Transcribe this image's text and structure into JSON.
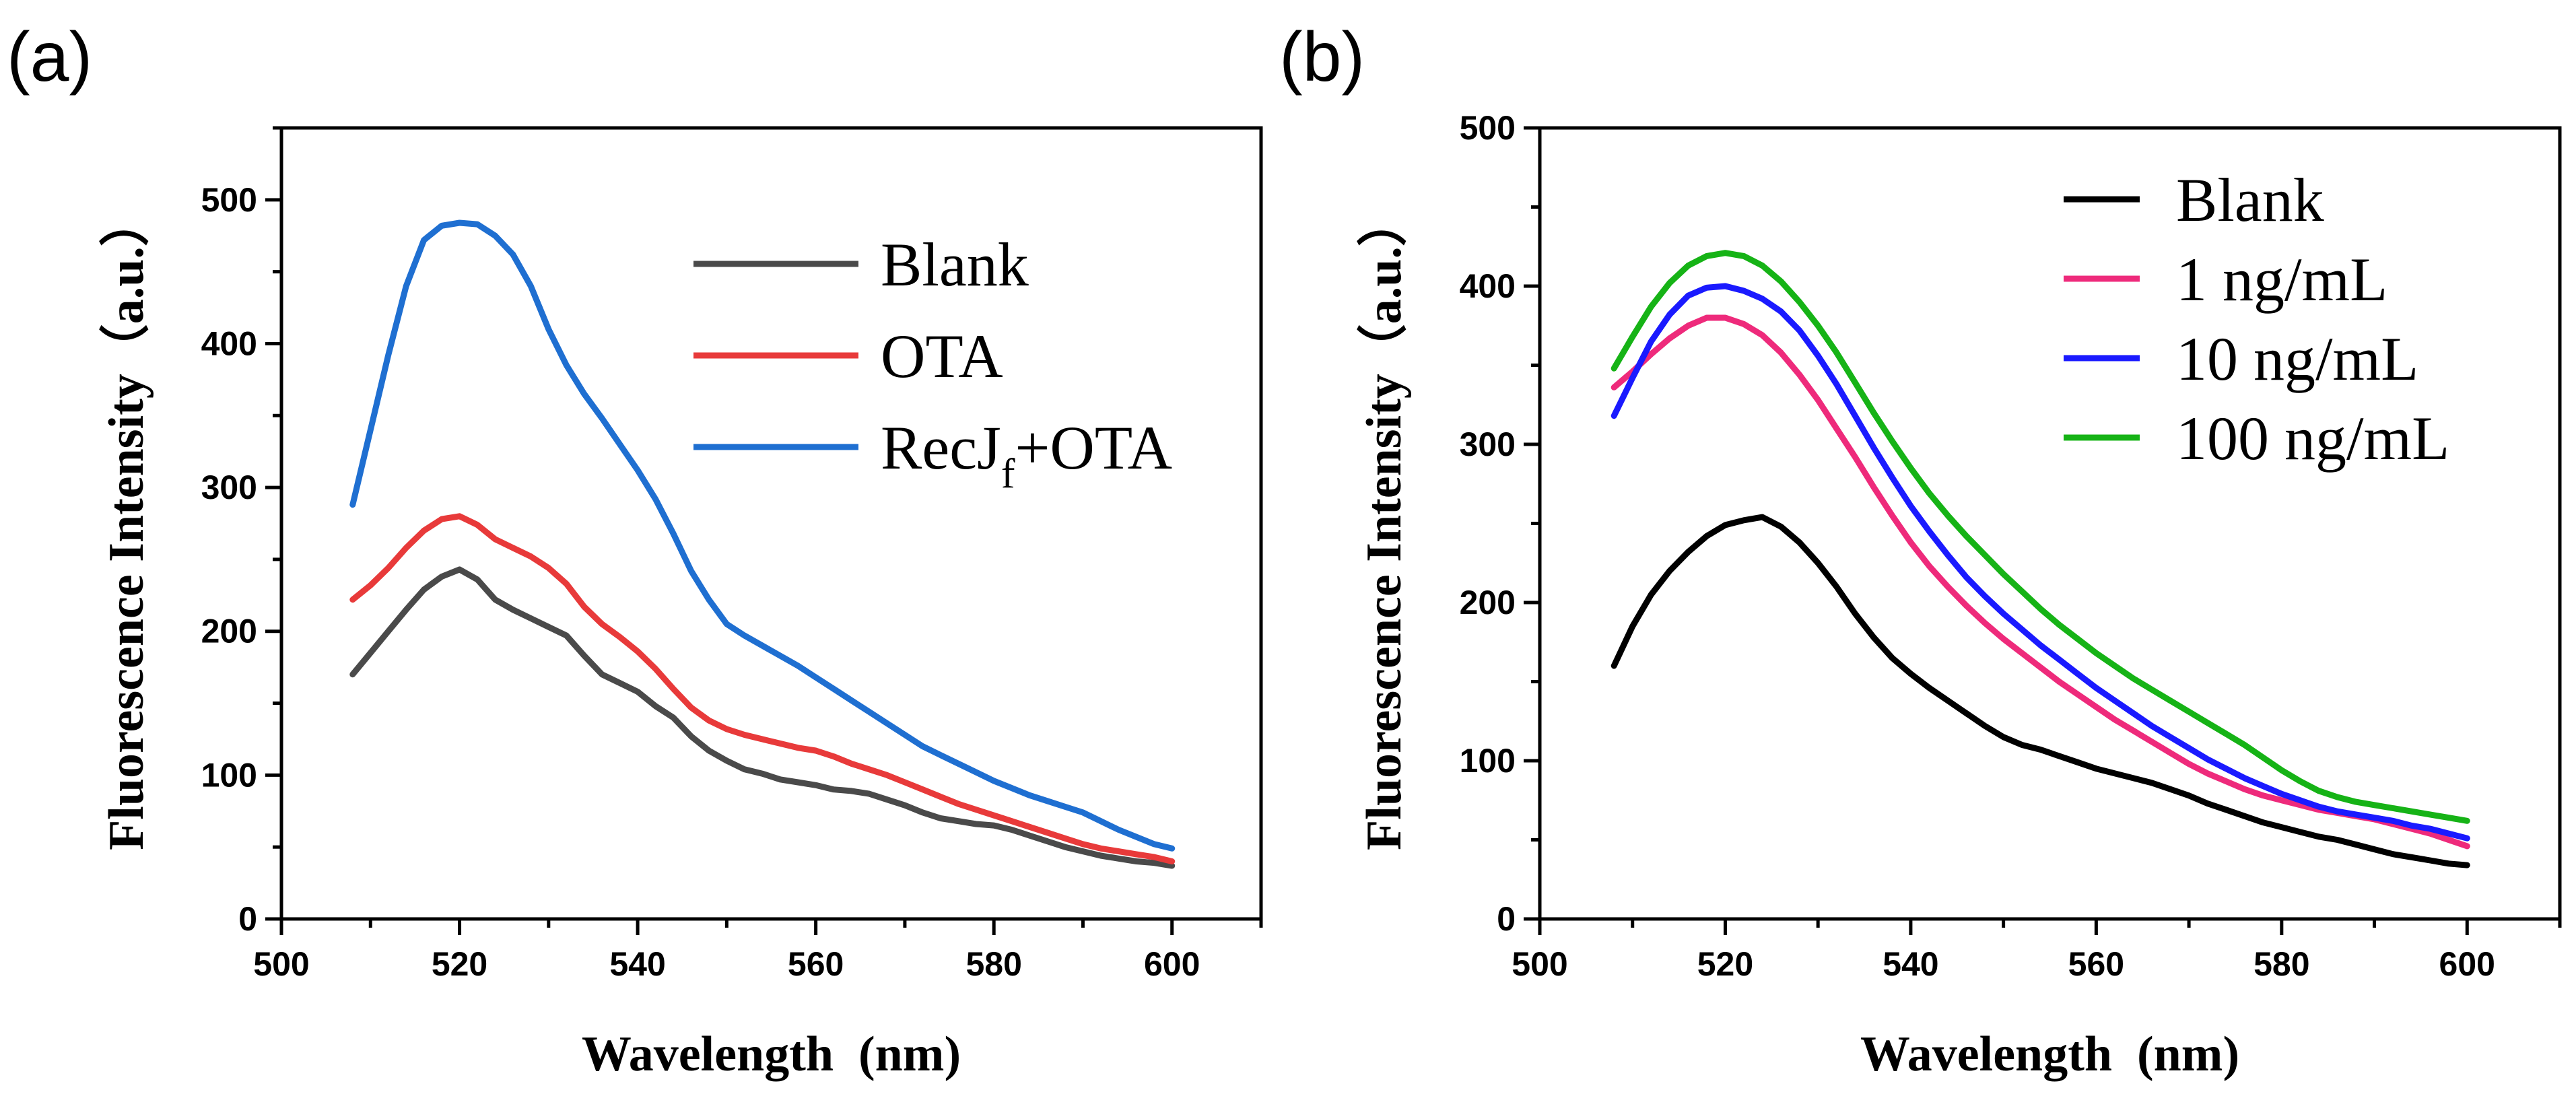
{
  "chart_data": [
    {
      "type": "line",
      "panel_label": "(a)",
      "xlabel": "Wavelength  (nm)",
      "ylabel": "Fluorescence Intensity（a.u.）",
      "xlim": [
        500,
        610
      ],
      "ylim": [
        0,
        550
      ],
      "xticks": [
        500,
        520,
        540,
        560,
        580,
        600
      ],
      "yticks": [
        0,
        100,
        200,
        300,
        400,
        500
      ],
      "legend_position": "top-right",
      "series": [
        {
          "name": "Blank",
          "legend_main": "Blank",
          "legend_sub": "",
          "legend_tail": "",
          "color": "#4a4a4a",
          "x": [
            508,
            510,
            512,
            514,
            516,
            518,
            520,
            522,
            524,
            526,
            528,
            530,
            532,
            534,
            536,
            538,
            540,
            542,
            544,
            546,
            548,
            550,
            552,
            554,
            556,
            558,
            560,
            562,
            564,
            566,
            568,
            570,
            572,
            574,
            576,
            578,
            580,
            582,
            584,
            586,
            588,
            590,
            592,
            594,
            596,
            598,
            600
          ],
          "y": [
            170,
            185,
            200,
            215,
            229,
            238,
            243,
            236,
            222,
            215,
            209,
            203,
            197,
            183,
            170,
            164,
            158,
            148,
            140,
            127,
            117,
            110,
            104,
            101,
            97,
            95,
            93,
            90,
            89,
            87,
            83,
            79,
            74,
            70,
            68,
            66,
            65,
            62,
            58,
            54,
            50,
            47,
            44,
            42,
            40,
            39,
            37
          ]
        },
        {
          "name": "OTA",
          "legend_main": "OTA",
          "legend_sub": "",
          "legend_tail": "",
          "color": "#e83a3a",
          "x": [
            508,
            510,
            512,
            514,
            516,
            518,
            520,
            522,
            524,
            526,
            528,
            530,
            532,
            534,
            536,
            538,
            540,
            542,
            544,
            546,
            548,
            550,
            552,
            554,
            556,
            558,
            560,
            562,
            564,
            566,
            568,
            570,
            572,
            574,
            576,
            578,
            580,
            582,
            584,
            586,
            588,
            590,
            592,
            594,
            596,
            598,
            600
          ],
          "y": [
            222,
            232,
            244,
            258,
            270,
            278,
            280,
            274,
            264,
            258,
            252,
            244,
            233,
            217,
            205,
            196,
            186,
            174,
            160,
            147,
            138,
            132,
            128,
            125,
            122,
            119,
            117,
            113,
            108,
            104,
            100,
            95,
            90,
            85,
            80,
            76,
            72,
            68,
            64,
            60,
            56,
            52,
            49,
            47,
            45,
            43,
            40
          ]
        },
        {
          "name": "RecJf+OTA",
          "legend_main": "RecJ",
          "legend_sub": "f",
          "legend_tail": "+OTA",
          "color": "#1f6fd1",
          "x": [
            508,
            510,
            512,
            514,
            516,
            518,
            520,
            522,
            524,
            526,
            528,
            530,
            532,
            534,
            536,
            538,
            540,
            542,
            544,
            546,
            548,
            550,
            552,
            554,
            556,
            558,
            560,
            562,
            564,
            566,
            568,
            570,
            572,
            574,
            576,
            578,
            580,
            582,
            584,
            586,
            588,
            590,
            592,
            594,
            596,
            598,
            600
          ],
          "y": [
            288,
            340,
            392,
            440,
            472,
            482,
            484,
            483,
            475,
            462,
            440,
            410,
            385,
            365,
            348,
            330,
            312,
            292,
            268,
            242,
            222,
            205,
            197,
            190,
            183,
            176,
            168,
            160,
            152,
            144,
            136,
            128,
            120,
            114,
            108,
            102,
            96,
            91,
            86,
            82,
            78,
            74,
            68,
            62,
            57,
            52,
            49
          ]
        }
      ]
    },
    {
      "type": "line",
      "panel_label": "(b)",
      "xlabel": "Wavelength  (nm)",
      "ylabel": "Fluorescence Intensity（a.u.）",
      "xlim": [
        500,
        610
      ],
      "ylim": [
        0,
        500
      ],
      "xticks": [
        500,
        520,
        540,
        560,
        580,
        600
      ],
      "yticks": [
        0,
        100,
        200,
        300,
        400,
        500
      ],
      "legend_position": "top-right",
      "series": [
        {
          "name": "Blank",
          "legend_main": "Blank",
          "legend_sub": "",
          "legend_tail": "",
          "color": "#000000",
          "x": [
            508,
            510,
            512,
            514,
            516,
            518,
            520,
            522,
            524,
            526,
            528,
            530,
            532,
            534,
            536,
            538,
            540,
            542,
            544,
            546,
            548,
            550,
            552,
            554,
            556,
            558,
            560,
            562,
            564,
            566,
            568,
            570,
            572,
            574,
            576,
            578,
            580,
            582,
            584,
            586,
            588,
            590,
            592,
            594,
            596,
            598,
            600
          ],
          "y": [
            160,
            185,
            205,
            220,
            232,
            242,
            249,
            252,
            254,
            248,
            238,
            225,
            210,
            193,
            178,
            165,
            155,
            146,
            138,
            130,
            122,
            115,
            110,
            107,
            103,
            99,
            95,
            92,
            89,
            86,
            82,
            78,
            73,
            69,
            65,
            61,
            58,
            55,
            52,
            50,
            47,
            44,
            41,
            39,
            37,
            35,
            34
          ]
        },
        {
          "name": "1 ng/mL",
          "legend_main": "1 ng/mL",
          "legend_sub": "",
          "legend_tail": "",
          "color": "#ee2a7b",
          "x": [
            508,
            510,
            512,
            514,
            516,
            518,
            520,
            522,
            524,
            526,
            528,
            530,
            532,
            534,
            536,
            538,
            540,
            542,
            544,
            546,
            548,
            550,
            552,
            554,
            556,
            558,
            560,
            562,
            564,
            566,
            568,
            570,
            572,
            574,
            576,
            578,
            580,
            582,
            584,
            586,
            588,
            590,
            592,
            594,
            596,
            598,
            600
          ],
          "y": [
            336,
            346,
            357,
            367,
            375,
            380,
            380,
            376,
            369,
            358,
            344,
            328,
            310,
            292,
            273,
            255,
            238,
            223,
            210,
            198,
            187,
            177,
            168,
            159,
            150,
            142,
            134,
            126,
            119,
            112,
            105,
            98,
            92,
            87,
            82,
            78,
            75,
            72,
            69,
            67,
            65,
            63,
            60,
            57,
            54,
            50,
            46
          ]
        },
        {
          "name": "10 ng/mL",
          "legend_main": "10 ng/mL",
          "legend_sub": "",
          "legend_tail": "",
          "color": "#1a1aff",
          "x": [
            508,
            510,
            512,
            514,
            516,
            518,
            520,
            522,
            524,
            526,
            528,
            530,
            532,
            534,
            536,
            538,
            540,
            542,
            544,
            546,
            548,
            550,
            552,
            554,
            556,
            558,
            560,
            562,
            564,
            566,
            568,
            570,
            572,
            574,
            576,
            578,
            580,
            582,
            584,
            586,
            588,
            590,
            592,
            594,
            596,
            598,
            600
          ],
          "y": [
            318,
            342,
            365,
            382,
            394,
            399,
            400,
            397,
            392,
            384,
            372,
            356,
            338,
            318,
            298,
            279,
            261,
            245,
            230,
            216,
            204,
            193,
            183,
            173,
            164,
            155,
            146,
            138,
            130,
            122,
            115,
            108,
            101,
            95,
            89,
            84,
            79,
            75,
            71,
            68,
            66,
            64,
            62,
            59,
            57,
            54,
            51
          ]
        },
        {
          "name": "100 ng/mL",
          "legend_main": "100 ng/mL",
          "legend_sub": "",
          "legend_tail": "",
          "color": "#16b316",
          "x": [
            508,
            510,
            512,
            514,
            516,
            518,
            520,
            522,
            524,
            526,
            528,
            530,
            532,
            534,
            536,
            538,
            540,
            542,
            544,
            546,
            548,
            550,
            552,
            554,
            556,
            558,
            560,
            562,
            564,
            566,
            568,
            570,
            572,
            574,
            576,
            578,
            580,
            582,
            584,
            586,
            588,
            590,
            592,
            594,
            596,
            598,
            600
          ],
          "y": [
            348,
            368,
            387,
            402,
            413,
            419,
            421,
            419,
            413,
            403,
            390,
            375,
            358,
            339,
            320,
            302,
            285,
            269,
            255,
            242,
            230,
            218,
            207,
            196,
            186,
            177,
            168,
            160,
            152,
            145,
            138,
            131,
            124,
            117,
            110,
            102,
            94,
            87,
            81,
            77,
            74,
            72,
            70,
            68,
            66,
            64,
            62
          ]
        }
      ]
    }
  ]
}
